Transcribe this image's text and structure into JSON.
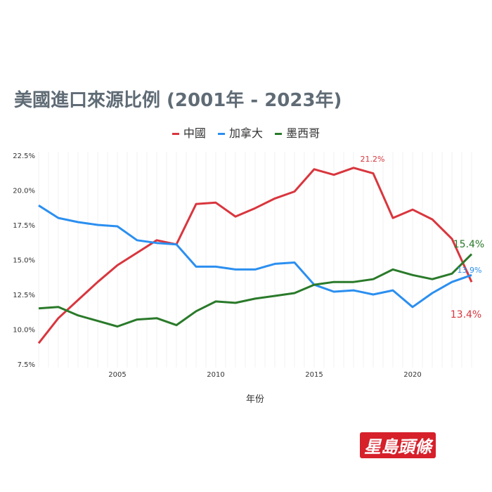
{
  "chart_data": {
    "type": "line",
    "title": "美國進口來源比例 (2001年 - 2023年)",
    "xlabel": "年份",
    "ylabel": "",
    "x": [
      2001,
      2002,
      2003,
      2004,
      2005,
      2006,
      2007,
      2008,
      2009,
      2010,
      2011,
      2012,
      2013,
      2014,
      2015,
      2016,
      2017,
      2018,
      2019,
      2020,
      2021,
      2022,
      2023
    ],
    "xticks": [
      "2005",
      "2010",
      "2015",
      "2020"
    ],
    "xtick_values": [
      2005,
      2010,
      2015,
      2020
    ],
    "yticks": [
      "7.5%",
      "10.0%",
      "12.5%",
      "15.0%",
      "17.5%",
      "20.0%",
      "22.5%"
    ],
    "ytick_values": [
      7.5,
      10,
      12.5,
      15,
      17.5,
      20,
      22.5
    ],
    "ylim": [
      7.5,
      22.5
    ],
    "xlim": [
      2001,
      2023
    ],
    "legend_position": "top-center",
    "series": [
      {
        "name": "中國",
        "color": "#d9363e",
        "values": [
          9.0,
          10.8,
          12.1,
          13.4,
          14.6,
          15.5,
          16.4,
          16.1,
          19.0,
          19.1,
          18.1,
          18.7,
          19.4,
          19.9,
          21.5,
          21.1,
          21.6,
          21.2,
          18.0,
          18.6,
          17.9,
          16.5,
          13.4
        ]
      },
      {
        "name": "加拿大",
        "color": "#2b8ff0",
        "values": [
          18.9,
          18.0,
          17.7,
          17.5,
          17.4,
          16.4,
          16.2,
          16.1,
          14.5,
          14.5,
          14.3,
          14.3,
          14.7,
          14.8,
          13.2,
          12.7,
          12.8,
          12.5,
          12.8,
          11.6,
          12.6,
          13.4,
          13.9
        ]
      },
      {
        "name": "墨西哥",
        "color": "#2a7a2a",
        "values": [
          11.5,
          11.6,
          11.0,
          10.6,
          10.2,
          10.7,
          10.8,
          10.3,
          11.3,
          12.0,
          11.9,
          12.2,
          12.4,
          12.6,
          13.2,
          13.4,
          13.4,
          13.6,
          14.3,
          13.9,
          13.6,
          14.0,
          15.4
        ]
      }
    ],
    "annotations": [
      {
        "text": "21.2%",
        "series": "中國",
        "x": 2018
      },
      {
        "text": "13.4%",
        "series": "中國",
        "x": 2023
      },
      {
        "text": "13.9%",
        "series": "加拿大",
        "x": 2023
      },
      {
        "text": "15.4%",
        "series": "墨西哥",
        "x": 2023
      }
    ]
  },
  "logo": "星島頭條"
}
